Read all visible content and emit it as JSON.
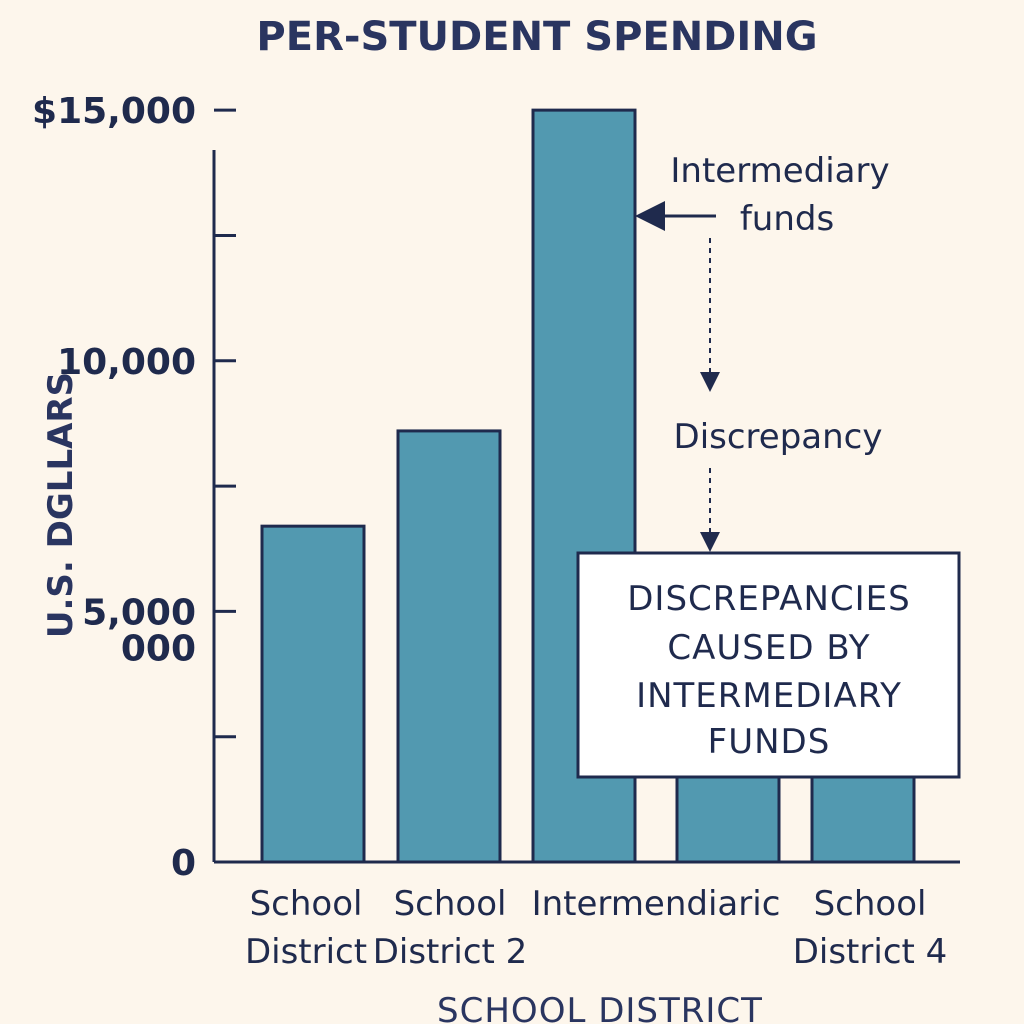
{
  "chart_data": {
    "type": "bar",
    "title": "PER-STUDENT SPENDING",
    "xlabel": "SCHOOL DISTRICT",
    "ylabel": "U.S. DGLLARS",
    "categories": [
      [
        "School",
        "District"
      ],
      [
        "School",
        "District 2"
      ],
      [
        "Intermendiaric"
      ],
      [],
      [
        "School",
        "District 4"
      ]
    ],
    "values": [
      6700,
      8600,
      15000,
      3100,
      3100
    ],
    "ylim": [
      0,
      16000
    ],
    "y_tick_labels": [
      {
        "value": 15000,
        "label": "$15,000"
      },
      {
        "value": 10000,
        "label": "10,000"
      },
      {
        "value": 5000,
        "label": "5,000"
      },
      {
        "value": 0,
        "label": "0"
      }
    ],
    "extra_tick_label": {
      "label": "000",
      "value": 2500
    },
    "minor_ticks": [
      12500,
      7500,
      2500
    ],
    "grid": false,
    "colors": {
      "bar": "#5299b0",
      "bar_outline": "#1f2a4d",
      "axis": "#1f2a4d",
      "background": "#fdf6ec"
    },
    "annotations": {
      "intermediary_lines": [
        "Intermediary",
        "funds"
      ],
      "discrepancy": "Discrepancy",
      "box_lines": [
        "DISCREPANCIES",
        "CAUSED BY",
        "INTERMEDIARY",
        "FUNDS"
      ]
    }
  }
}
